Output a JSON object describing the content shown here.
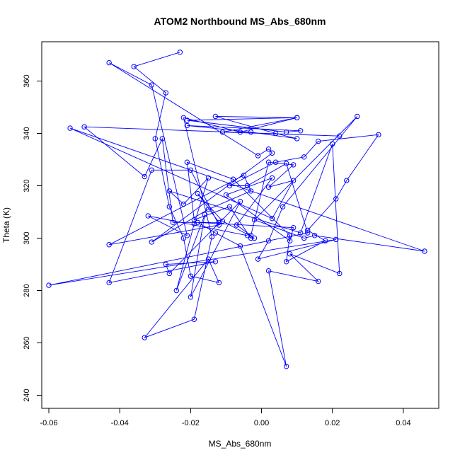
{
  "chart_data": {
    "type": "line",
    "title": "ATOM2 Northbound MS_Abs_680nm",
    "xlabel": "MS_Abs_680nm",
    "ylabel": "Theta (K)",
    "xlim": [
      -0.062,
      0.05
    ],
    "ylim": [
      235,
      375
    ],
    "x_ticks": [
      -0.06,
      -0.04,
      -0.02,
      0.0,
      0.02,
      0.04
    ],
    "x_tick_labels": [
      "-0.06",
      "-0.04",
      "-0.02",
      "0.00",
      "0.02",
      "0.04"
    ],
    "y_ticks": [
      240,
      260,
      280,
      300,
      320,
      340,
      360
    ],
    "y_tick_labels": [
      "240",
      "260",
      "280",
      "300",
      "320",
      "340",
      "360"
    ],
    "grid": false,
    "legend": "none",
    "series_color": "#0000ff",
    "marker": "open-circle",
    "series": [
      {
        "points": [
          [
            -0.023,
            371
          ],
          [
            -0.036,
            365.5
          ],
          [
            -0.027,
            355.5
          ],
          [
            -0.03,
            338
          ],
          [
            -0.026,
            312
          ],
          [
            -0.022,
            300
          ],
          [
            -0.02,
            285.5
          ],
          [
            -0.012,
            283
          ],
          [
            -0.015,
            292
          ],
          [
            -0.033,
            262
          ],
          [
            -0.019,
            269
          ],
          [
            -0.014,
            300.5
          ],
          [
            -0.022,
            346
          ],
          [
            -0.006,
            340.5
          ],
          [
            0.01,
            346
          ],
          [
            -0.021,
            345
          ],
          [
            0.007,
            340.5
          ],
          [
            0.011,
            341
          ],
          [
            -0.021,
            343
          ],
          [
            -0.003,
            340.5
          ],
          [
            0.01,
            338
          ],
          [
            0.004,
            340
          ],
          [
            -0.013,
            346.5
          ],
          [
            0.01,
            346
          ],
          [
            -0.011,
            340.5
          ],
          [
            0.022,
            339
          ],
          [
            -0.05,
            342.5
          ],
          [
            -0.033,
            323.5
          ],
          [
            -0.028,
            338
          ],
          [
            -0.025,
            306
          ],
          [
            -0.012,
            306
          ],
          [
            -0.018,
            317
          ],
          [
            -0.011,
            306.5
          ],
          [
            -0.002,
            300
          ],
          [
            -0.003,
            300
          ],
          [
            -0.009,
            312
          ],
          [
            -0.019,
            307
          ],
          [
            -0.021,
            329
          ],
          [
            -0.008,
            322.5
          ],
          [
            0.008,
            301
          ],
          [
            0.007,
            291
          ],
          [
            0.018,
            299
          ],
          [
            0.013,
            303
          ],
          [
            0.021,
            315
          ],
          [
            0.024,
            322
          ],
          [
            0.033,
            339.5
          ],
          [
            0.016,
            337
          ],
          [
            0.012,
            331
          ],
          [
            0.004,
            329
          ],
          [
            -0.009,
            320
          ],
          [
            -0.004,
            320
          ],
          [
            0.007,
            328.5
          ],
          [
            0.013,
            302
          ],
          [
            -0.06,
            282
          ],
          [
            0.021,
            299.5
          ],
          [
            -0.001,
            292
          ],
          [
            0.002,
            299
          ],
          [
            0.006,
            312
          ],
          [
            0.027,
            346.5
          ],
          [
            -0.002,
            307
          ],
          [
            0.012,
            300
          ],
          [
            0.015,
            301
          ],
          [
            0.046,
            295
          ],
          [
            -0.054,
            342
          ],
          [
            0.003,
            307.5
          ],
          [
            0.009,
            322
          ],
          [
            0.002,
            319.5
          ],
          [
            0.009,
            328
          ],
          [
            0.002,
            329
          ],
          [
            -0.003,
            301
          ],
          [
            -0.007,
            305
          ],
          [
            0.003,
            323
          ],
          [
            -0.01,
            316.5
          ],
          [
            0.008,
            299
          ],
          [
            0.009,
            304
          ],
          [
            -0.018,
            306
          ],
          [
            -0.013,
            302
          ],
          [
            -0.006,
            297
          ],
          [
            0.007,
            251
          ],
          [
            0.002,
            287.5
          ],
          [
            0.016,
            283.5
          ],
          [
            0.008,
            294
          ],
          [
            0.022,
            286.5
          ],
          [
            0.02,
            336
          ],
          [
            0.011,
            302
          ],
          [
            -0.026,
            318
          ],
          [
            -0.022,
            313
          ],
          [
            -0.015,
            323
          ],
          [
            -0.019,
            305.5
          ],
          [
            -0.024,
            280
          ],
          [
            -0.016,
            309
          ],
          [
            -0.02,
            277.5
          ],
          [
            -0.006,
            314
          ],
          [
            -0.026,
            286.5
          ],
          [
            -0.027,
            290
          ],
          [
            -0.013,
            291
          ],
          [
            -0.043,
            283
          ],
          [
            -0.031,
            326
          ],
          [
            -0.02,
            326
          ],
          [
            -0.012,
            305
          ],
          [
            -0.043,
            297.5
          ],
          [
            -0.005,
            324
          ],
          [
            -0.003,
            318
          ],
          [
            -0.015,
            311
          ],
          [
            -0.031,
            298.5
          ],
          [
            0.003,
            332.5
          ],
          [
            0.002,
            334
          ],
          [
            -0.001,
            331.5
          ],
          [
            -0.043,
            367
          ],
          [
            -0.031,
            358.5
          ],
          [
            -0.021,
            301
          ],
          [
            -0.032,
            308.5
          ],
          [
            -0.004,
            301
          ]
        ]
      }
    ]
  }
}
